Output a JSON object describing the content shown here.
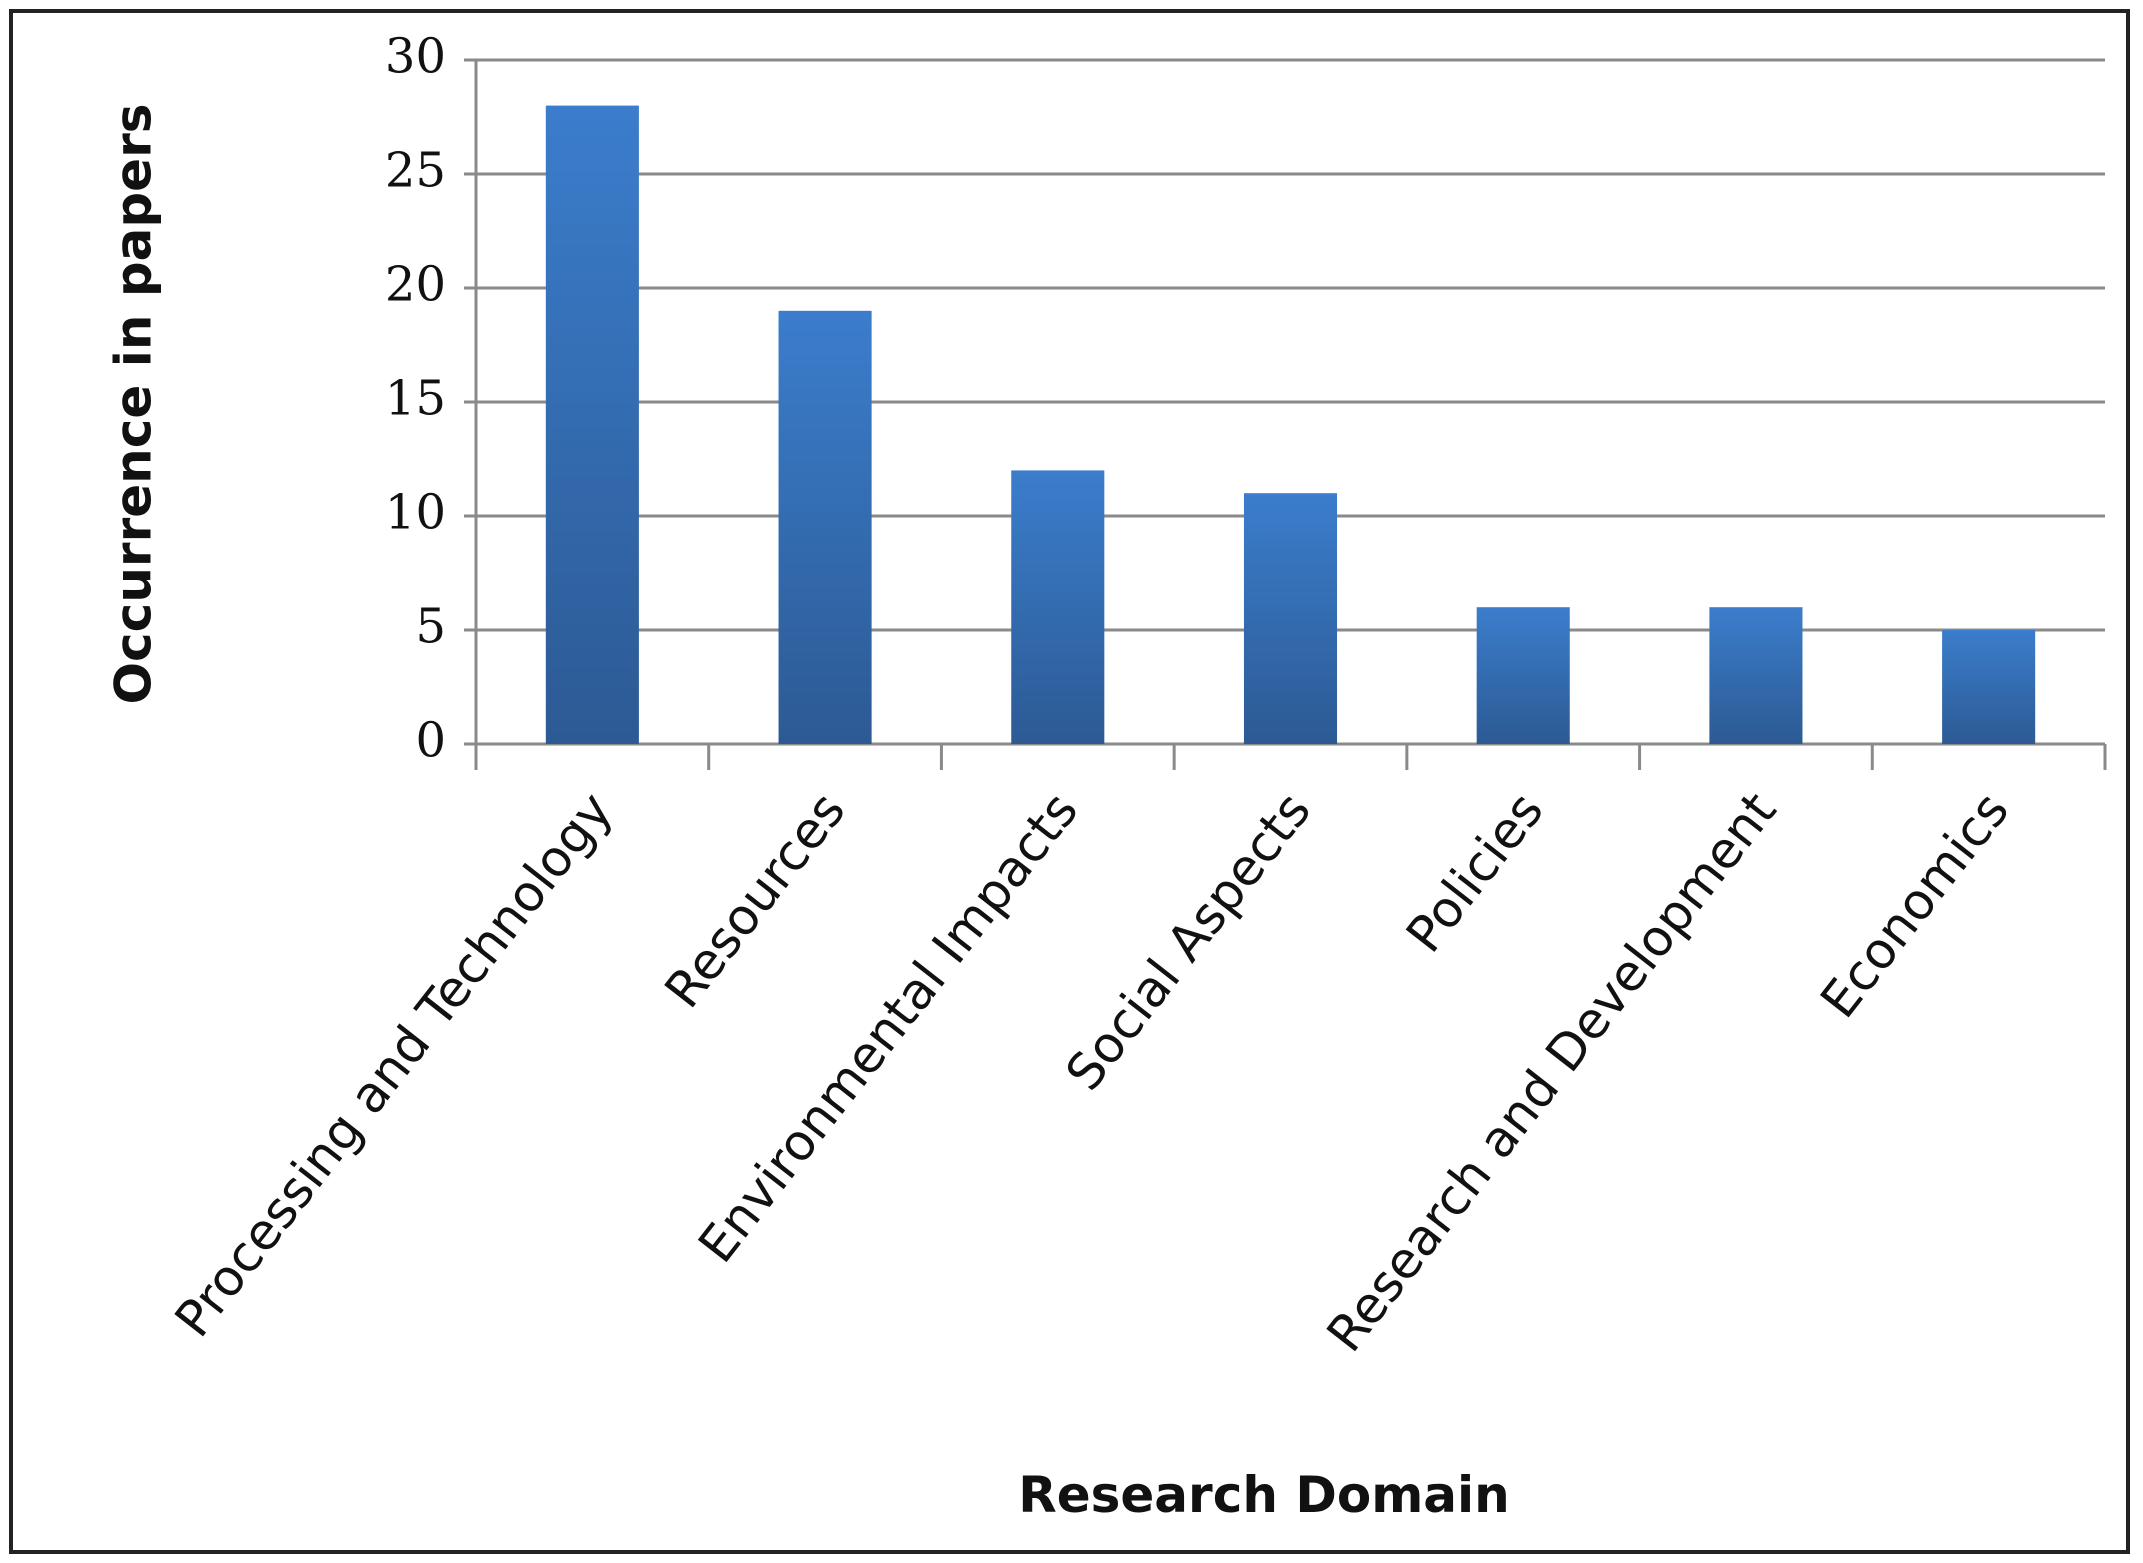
{
  "chart_data": {
    "type": "bar",
    "x_label": "Research Domain",
    "y_label": "Occurrence in papers",
    "categories": [
      "Processing and Technology",
      "Resources",
      "Environmental Impacts",
      "Social Aspects",
      "Policies",
      "Research and Development",
      "Economics"
    ],
    "values": [
      28,
      19,
      12,
      11,
      6,
      6,
      5
    ],
    "color": "#3b7dcc",
    "ylim": [
      0,
      30
    ],
    "yticks": [
      0,
      5,
      10,
      15,
      20,
      25,
      30
    ],
    "grid": true
  }
}
